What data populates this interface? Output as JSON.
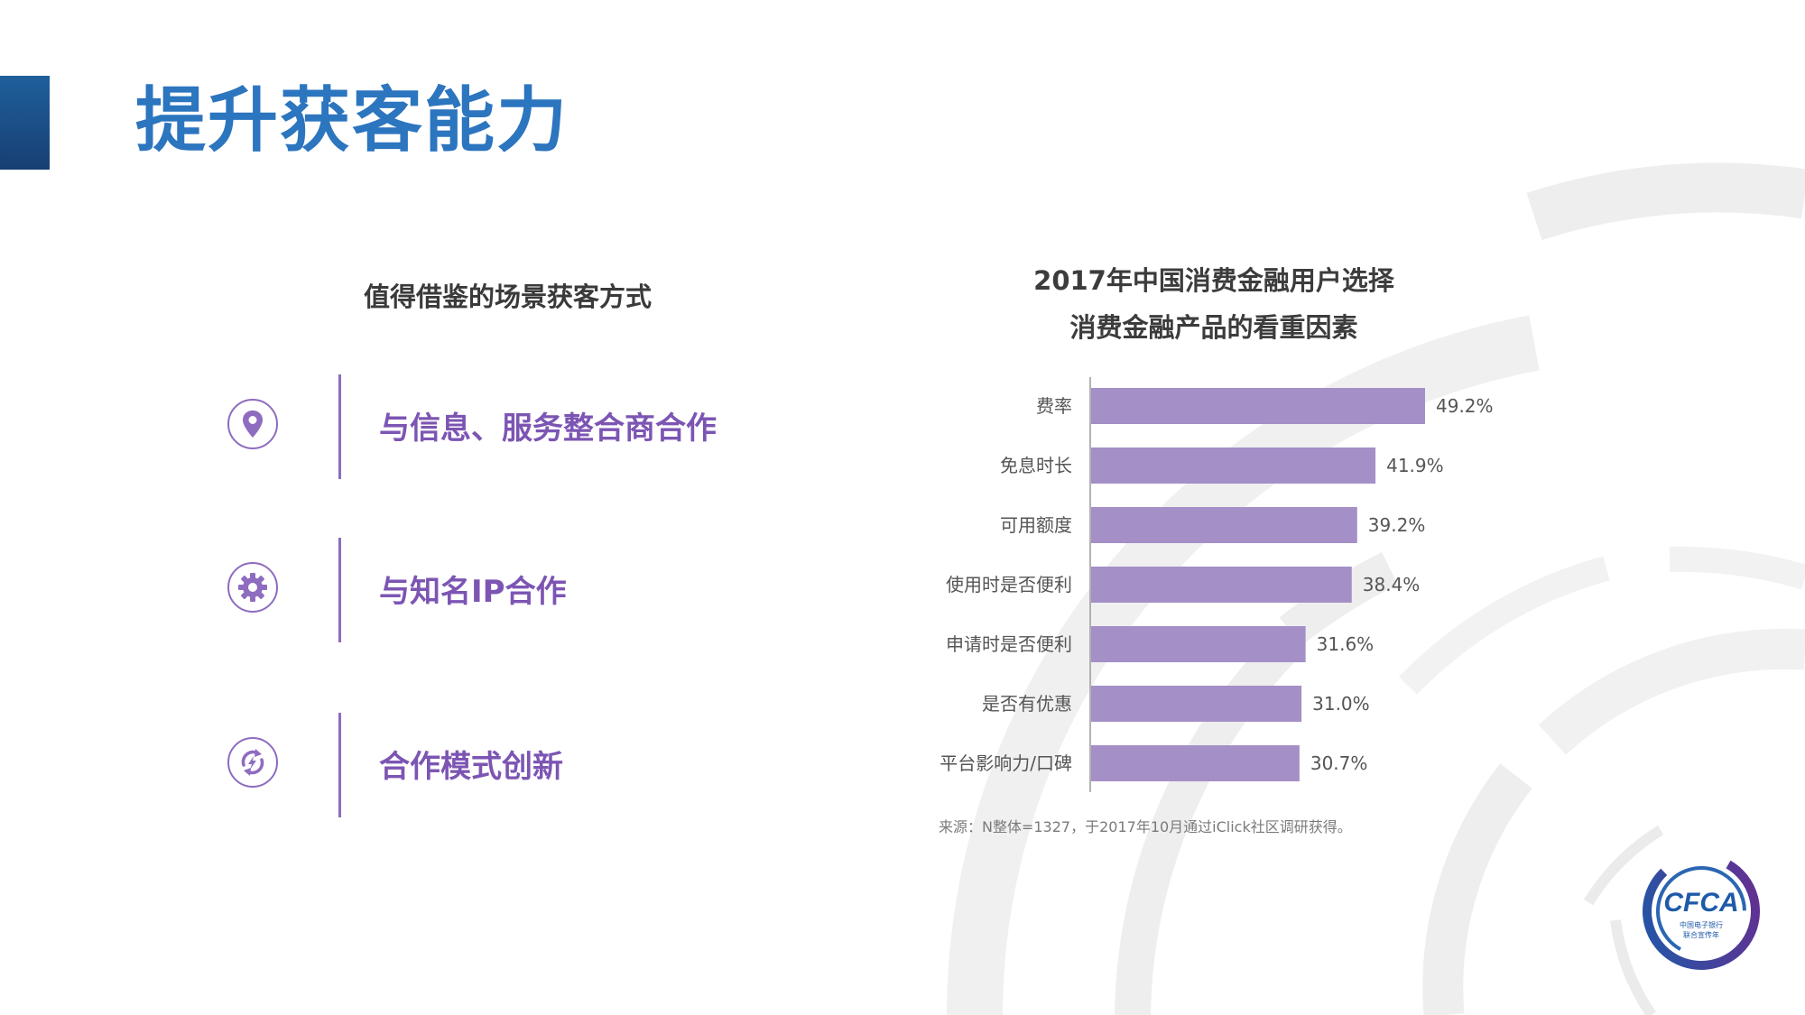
{
  "page": {
    "title": "提升获客能力"
  },
  "left_panel": {
    "heading": "值得借鉴的场景获客方式",
    "methods": [
      {
        "label": "与信息、服务整合商合作",
        "icon": "location-pin-icon"
      },
      {
        "label": "与知名IP合作",
        "icon": "gear-icon"
      },
      {
        "label": "合作模式创新",
        "icon": "refresh-arrows-icon"
      }
    ]
  },
  "colors": {
    "title": "#2c75bf",
    "accent_bar": "#1f5f9b",
    "purple": "#7c55b3",
    "bar": "#a48fc7"
  },
  "chart_data": {
    "type": "bar",
    "orientation": "horizontal",
    "title_lines": [
      "2017年中国消费金融用户选择",
      "消费金融产品的看重因素"
    ],
    "categories": [
      "费率",
      "免息时长",
      "可用额度",
      "使用时是否便利",
      "申请时是否便利",
      "是否有优惠",
      "平台影响力/口碑"
    ],
    "values": [
      49.2,
      41.9,
      39.2,
      38.4,
      31.6,
      31.0,
      30.7
    ],
    "value_labels": [
      "49.2%",
      "41.9%",
      "39.2%",
      "38.4%",
      "31.6%",
      "31.0%",
      "30.7%"
    ],
    "unit": "%",
    "xlim": [
      0,
      100
    ],
    "grid": false,
    "legend": "none",
    "source": "来源：N整体=1327，于2017年10月通过iClick社区调研获得。"
  },
  "logo": {
    "text": "CFCA",
    "subtext_1": "中国电子银行",
    "subtext_2": "联合宣传年"
  }
}
